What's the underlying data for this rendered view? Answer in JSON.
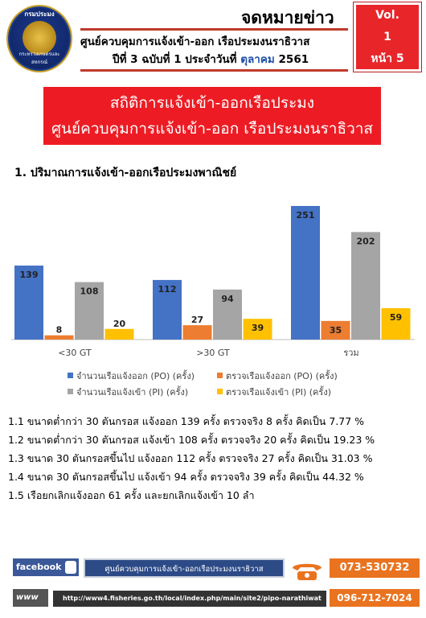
{
  "header": {
    "logo_text_top": "กรมประมง",
    "logo_text_bottom": "กระทรวงเกษตรและสหกรณ์",
    "newsletter": "จดหมายข่าว",
    "center_name": "ศูนย์ควบคุมการแจ้งเข้า-ออก เรือประมงนราธิวาส",
    "issue_prefix": "ปีที่ 3 ฉบับที่ 1 ประจำวันที่",
    "issue_month": "ตุลาคม",
    "issue_year": "2561",
    "vol_label": "Vol.",
    "vol_number": "1",
    "page_label": "หน้า 5"
  },
  "banner": {
    "line1": "สถิติการแจ้งเข้า-ออกเรือประมง",
    "line2": "ศูนย์ควบคุมการแจ้งเข้า-ออก เรือประมงนราธิวาส"
  },
  "section_title": "1. ปริมาณการแจ้งเข้า-ออกเรือประมงพาณิชย์",
  "chart_data": {
    "type": "bar",
    "categories": [
      "<30 GT",
      ">30 GT",
      "รวม"
    ],
    "series": [
      {
        "name": "จำนวนเรือแจ้งออก (PO) (ครั้ง)",
        "values": [
          139,
          112,
          251
        ],
        "color": "#4472c4"
      },
      {
        "name": "ตรวจเรือแจ้งออก (PO) (ครั้ง)",
        "values": [
          8,
          27,
          35
        ],
        "color": "#ed7d31"
      },
      {
        "name": "จำนวนเรือแจ้งเข้า (PI) (ครั้ง)",
        "values": [
          108,
          94,
          202
        ],
        "color": "#a5a5a5"
      },
      {
        "name": "ตรวจเรือแจ้งเข้า (PI) (ครั้ง)",
        "values": [
          20,
          39,
          59
        ],
        "color": "#ffc000"
      }
    ],
    "ylim": [
      0,
      260
    ],
    "gridlines": false,
    "legend_position": "bottom"
  },
  "stats": [
    "1.1 ขนาดต่ำกว่า 30 ตันกรอส แจ้งออก 139 ครั้ง ตรวจจริง 8 ครั้ง คิดเป็น 7.77 %",
    "1.2 ขนาดต่ำกว่า 30 ตันกรอส แจ้งเข้า 108 ครั้ง ตรวจจริง 20 ครั้ง คิดเป็น 19.23 %",
    "1.3 ขนาด 30 ตันกรอสขึ้นไป แจ้งออก 112 ครั้ง ตรวจจริง 27 ครั้ง คิดเป็น 31.03 %",
    "1.4 ขนาด 30 ตันกรอสขึ้นไป แจ้งเข้า 94 ครั้ง ตรวจจริง 39 ครั้ง คิดเป็น 44.32 %",
    "1.5 เรือยกเลิกแจ้งออก 61 ครั้ง และยกเลิกแจ้งเข้า 10 ลำ"
  ],
  "footer": {
    "facebook_label": "facebook",
    "www_label": "www",
    "facebook_page": "ศูนย์ควบคุมการแจ้งเข้า-ออกเรือประมงนราธิวาส",
    "url": "http://www4.fisheries.go.th/local/index.php/main/site2/pipo-narathiwat",
    "phone_1": "073-530732",
    "phone_2": "096-712-7024",
    "icons": [
      "facebook-thumb-icon",
      "telephone-icon"
    ]
  }
}
